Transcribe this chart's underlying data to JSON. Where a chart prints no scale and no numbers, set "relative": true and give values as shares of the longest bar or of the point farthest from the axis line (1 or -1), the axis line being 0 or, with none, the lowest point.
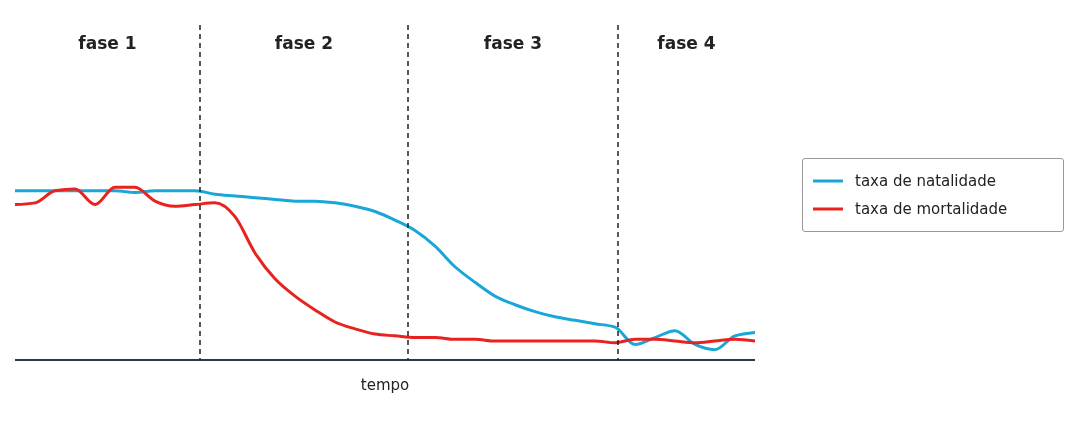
{
  "chart_data": {
    "type": "line",
    "relative": true,
    "xlabel": "tempo",
    "categories": [
      null,
      null,
      null,
      null,
      null,
      null,
      null,
      null,
      null,
      null,
      null,
      null,
      null,
      null,
      null,
      null,
      null,
      null,
      null,
      null,
      null,
      null,
      null,
      null,
      null,
      null,
      null,
      null,
      null,
      null,
      null,
      null,
      null,
      null,
      null,
      null,
      null,
      null
    ],
    "series": [
      {
        "name": "taxa de natalidade",
        "color": "#1aa7d8",
        "values": [
          0.98,
          0.98,
          0.98,
          0.98,
          0.98,
          0.98,
          0.97,
          0.98,
          0.98,
          0.98,
          0.96,
          0.95,
          0.94,
          0.93,
          0.92,
          0.92,
          0.91,
          0.89,
          0.86,
          0.81,
          0.75,
          0.66,
          0.54,
          0.45,
          0.37,
          0.32,
          0.28,
          0.25,
          0.23,
          0.21,
          0.19,
          0.09,
          0.13,
          0.17,
          0.09,
          0.06,
          0.14,
          0.16
        ]
      },
      {
        "name": "taxa de mortalidade",
        "color": "#e8231f",
        "values": [
          0.9,
          0.91,
          0.98,
          0.99,
          0.9,
          1,
          1,
          0.92,
          0.89,
          0.9,
          0.91,
          0.83,
          0.62,
          0.47,
          0.37,
          0.29,
          0.22,
          0.18,
          0.15,
          0.14,
          0.13,
          0.13,
          0.12,
          0.12,
          0.11,
          0.11,
          0.11,
          0.11,
          0.11,
          0.11,
          0.1,
          0.12,
          0.12,
          0.11,
          0.1,
          0.11,
          0.12,
          0.11
        ]
      }
    ],
    "annotations": [
      "fase 1",
      "fase 2",
      "fase 3",
      "fase 4"
    ],
    "legend": "right",
    "marker": "none",
    "line_style": "solid",
    "grid": false
  }
}
